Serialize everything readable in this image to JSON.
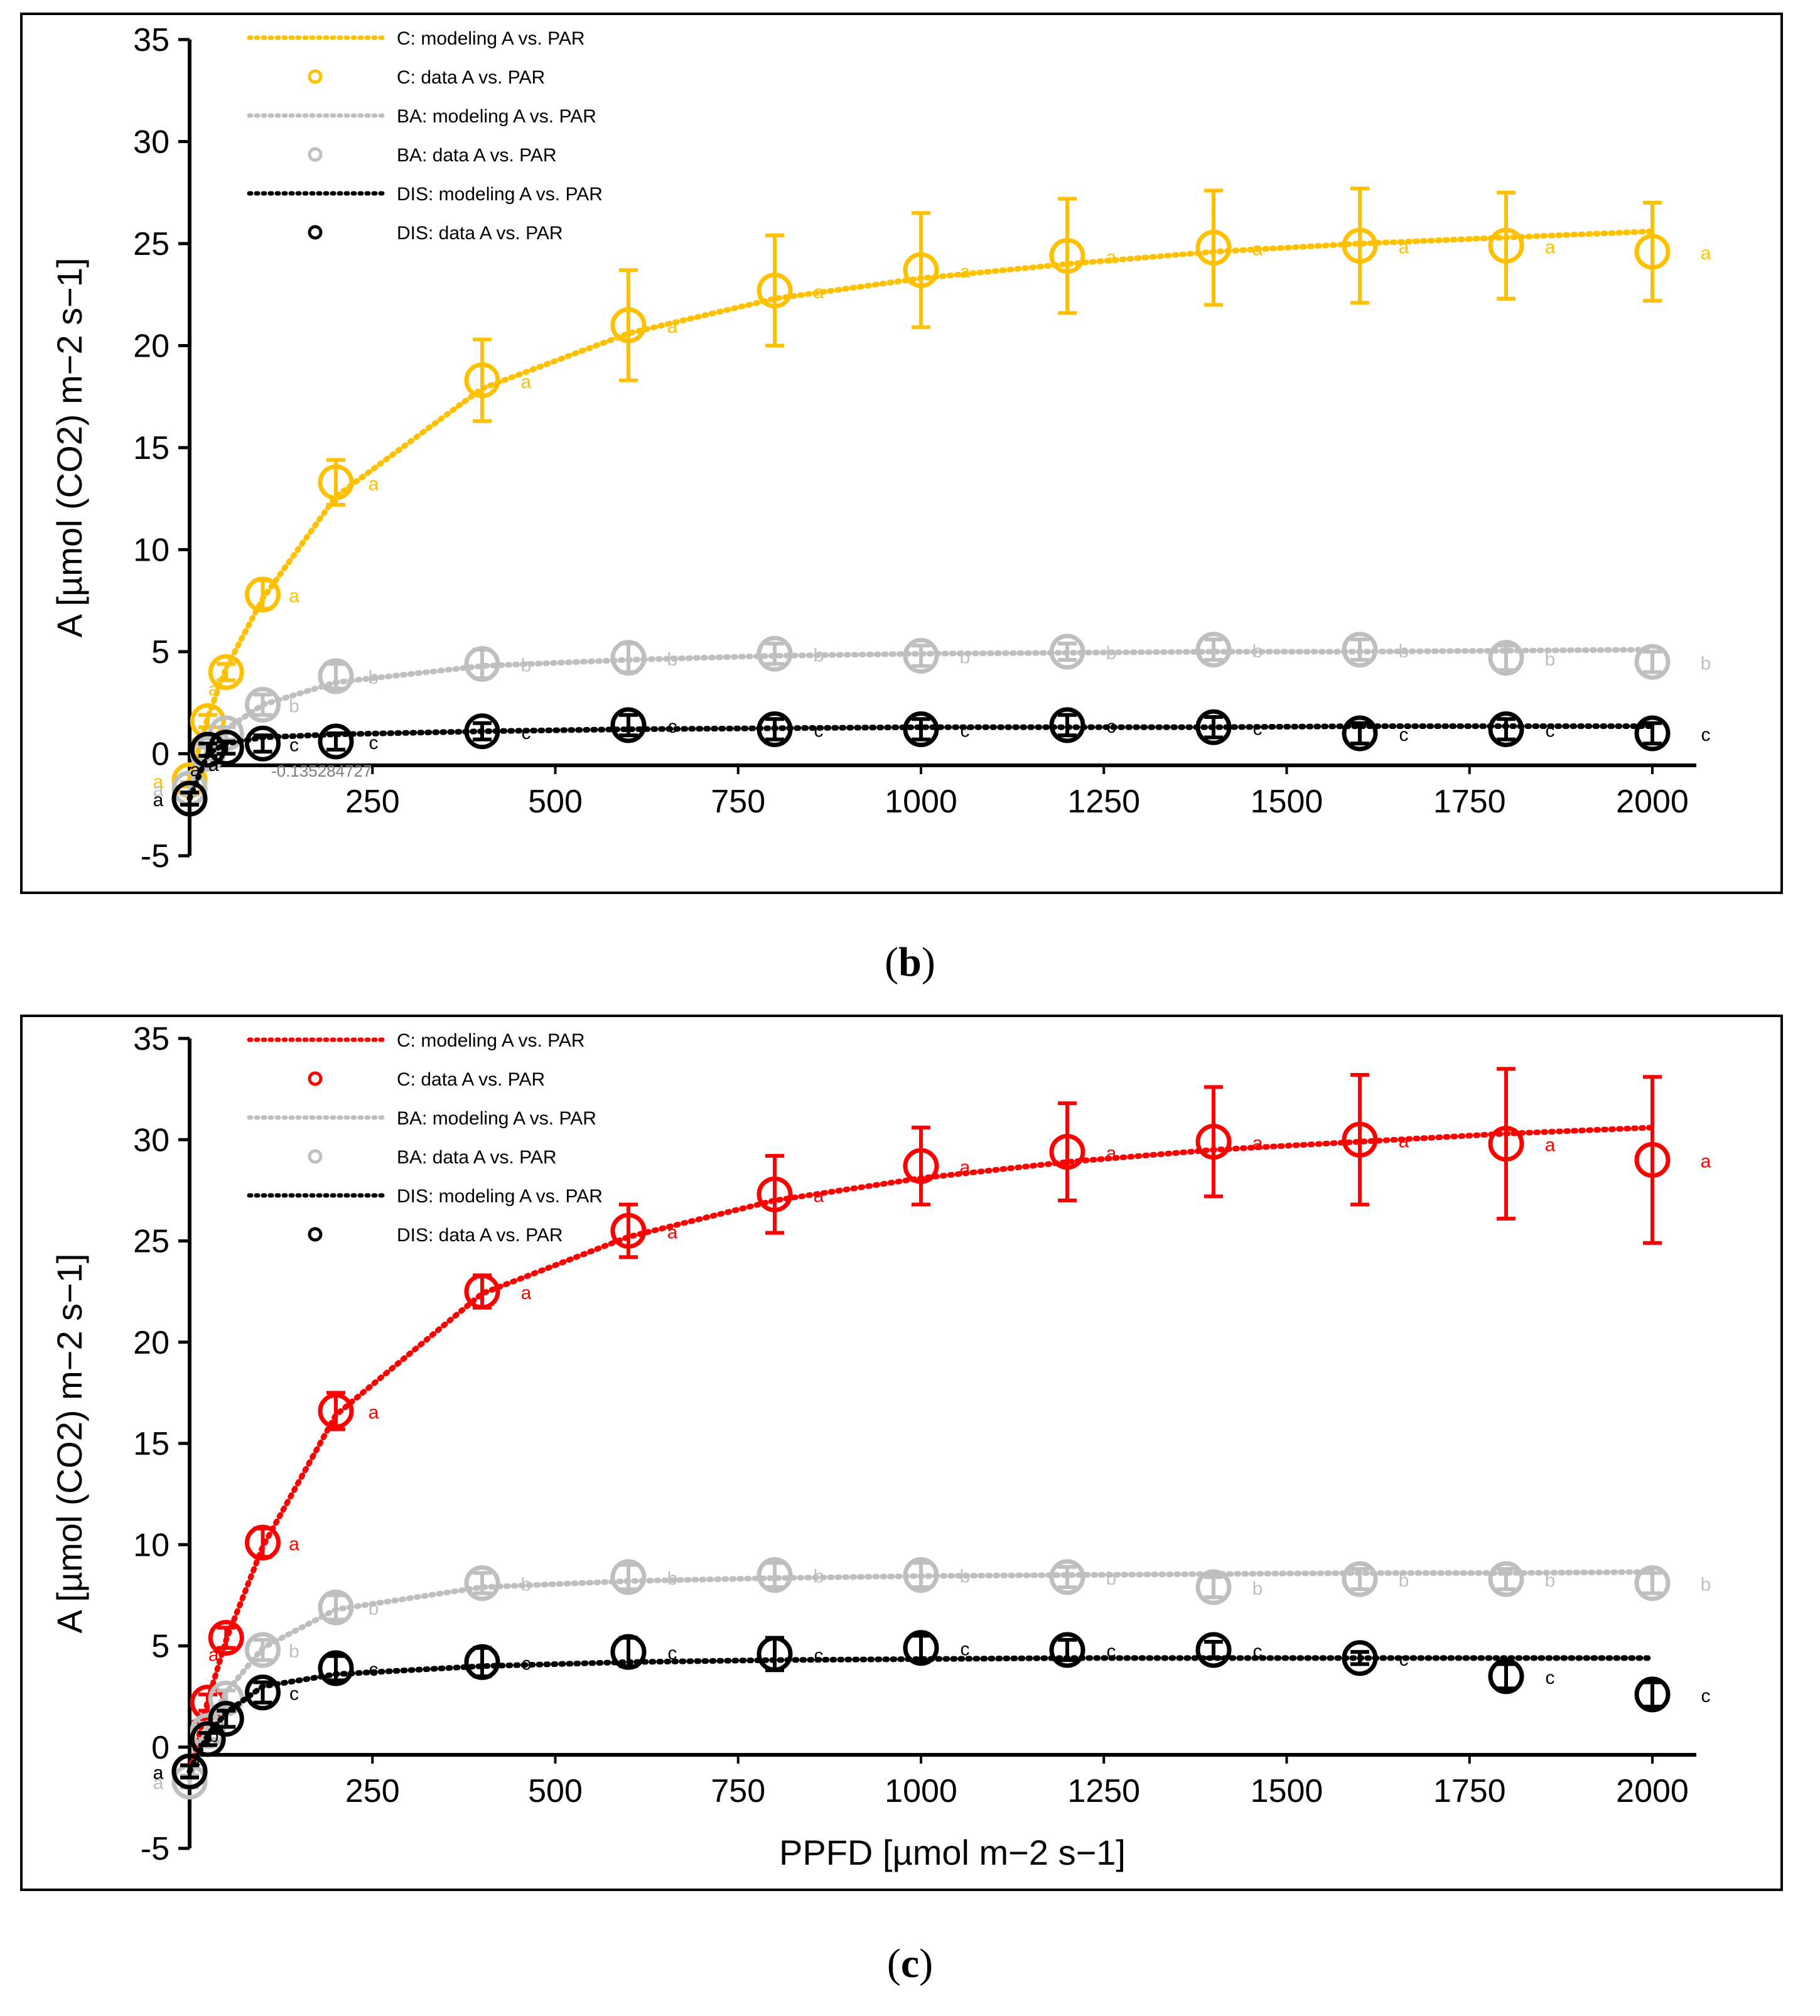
{
  "chart_data": [
    {
      "panel": "b",
      "caption_letter": "b",
      "type": "scatter",
      "xlim": [
        0,
        2000
      ],
      "ylim": [
        -5,
        35
      ],
      "x_ticks": [
        250,
        500,
        750,
        1000,
        1250,
        1500,
        1750,
        2000
      ],
      "y_ticks": [
        -5,
        0,
        5,
        10,
        15,
        20,
        25,
        30,
        35
      ],
      "xlabel": "",
      "ylabel": "A [µmol (CO2) m−2 s−1]",
      "legend_position": "top-left",
      "stray_label": "-0.135284727",
      "series": [
        {
          "name": "C",
          "legend_model": "C: modeling A vs. PAR",
          "legend_data": "C: data A vs. PAR",
          "color": "#FFC000",
          "x": [
            0,
            25,
            50,
            100,
            200,
            400,
            600,
            800,
            1000,
            1200,
            1400,
            1600,
            1800,
            2000
          ],
          "y": [
            -1.3,
            1.6,
            4.0,
            7.8,
            13.3,
            18.3,
            21.0,
            22.7,
            23.7,
            24.4,
            24.8,
            24.9,
            24.9,
            24.6
          ],
          "err": [
            0.3,
            0.3,
            0.4,
            0.7,
            1.1,
            2.0,
            2.7,
            2.7,
            2.8,
            2.8,
            2.8,
            2.8,
            2.6,
            2.4
          ],
          "model": [
            -1.3,
            1.8,
            4.2,
            7.6,
            12.6,
            17.9,
            20.6,
            22.3,
            23.3,
            24.0,
            24.6,
            25.0,
            25.3,
            25.6
          ],
          "letters": [
            "a",
            "a",
            "a",
            "a",
            "a",
            "a",
            "a",
            "a",
            "a",
            "a",
            "a",
            "a",
            "a",
            "a"
          ]
        },
        {
          "name": "BA",
          "legend_model": "BA: modeling A vs. PAR",
          "legend_data": "BA: data A vs. PAR",
          "color": "#BFBFBF",
          "x": [
            0,
            25,
            50,
            100,
            200,
            400,
            600,
            800,
            1000,
            1200,
            1400,
            1600,
            1800,
            2000
          ],
          "y": [
            -1.7,
            0.0,
            1.0,
            2.4,
            3.8,
            4.4,
            4.7,
            4.9,
            4.8,
            5.0,
            5.1,
            5.1,
            4.7,
            4.5
          ],
          "err": [
            0.3,
            0.3,
            0.3,
            0.5,
            0.6,
            0.7,
            0.7,
            0.5,
            0.5,
            0.4,
            0.5,
            0.5,
            0.6,
            0.5
          ],
          "model": [
            -1.6,
            0.2,
            1.2,
            2.4,
            3.5,
            4.3,
            4.6,
            4.8,
            4.9,
            4.95,
            5.0,
            5.0,
            5.05,
            5.1
          ],
          "letters": [
            "a",
            "a",
            "a",
            "b",
            "b",
            "b",
            "b",
            "b",
            "b",
            "b",
            "b",
            "b",
            "b",
            "b"
          ]
        },
        {
          "name": "DIS",
          "legend_model": "DIS: modeling A vs. PAR",
          "legend_data": "DIS: data A vs. PAR",
          "color": "#000000",
          "x": [
            0,
            25,
            50,
            100,
            200,
            400,
            600,
            800,
            1000,
            1200,
            1400,
            1600,
            1800,
            2000
          ],
          "y": [
            -2.2,
            0.2,
            0.3,
            0.5,
            0.6,
            1.1,
            1.4,
            1.2,
            1.2,
            1.4,
            1.3,
            1.0,
            1.2,
            1.0
          ],
          "err": [
            0.3,
            0.3,
            0.3,
            0.4,
            0.4,
            0.4,
            0.5,
            0.5,
            0.5,
            0.5,
            0.5,
            0.5,
            0.5,
            0.5
          ],
          "model": [
            -2.2,
            0.0,
            0.5,
            0.8,
            0.95,
            1.1,
            1.2,
            1.25,
            1.3,
            1.3,
            1.3,
            1.35,
            1.35,
            1.35
          ],
          "letters": [
            "a",
            "a",
            "a",
            "c",
            "c",
            "c",
            "c",
            "c",
            "c",
            "c",
            "c",
            "c",
            "c",
            "c"
          ]
        }
      ]
    },
    {
      "panel": "c",
      "caption_letter": "c",
      "type": "scatter",
      "xlim": [
        0,
        2000
      ],
      "ylim": [
        -5,
        35
      ],
      "x_ticks": [
        250,
        500,
        750,
        1000,
        1250,
        1500,
        1750,
        2000
      ],
      "y_ticks": [
        -5,
        0,
        5,
        10,
        15,
        20,
        25,
        30,
        35
      ],
      "xlabel": "PPFD [µmol m−2 s−1]",
      "ylabel": "A [µmol (CO2) m−2 s−1]",
      "legend_position": "top-left",
      "series": [
        {
          "name": "C",
          "legend_model": "C: modeling A vs. PAR",
          "legend_data": "C: data A vs. PAR",
          "color": "#FF0000",
          "x": [
            0,
            25,
            50,
            100,
            200,
            400,
            600,
            800,
            1000,
            1200,
            1400,
            1600,
            1800,
            2000
          ],
          "y": [
            -1.2,
            2.2,
            5.4,
            10.1,
            16.6,
            22.5,
            25.5,
            27.3,
            28.7,
            29.4,
            29.9,
            30.0,
            29.8,
            29.0
          ],
          "err": [
            0.3,
            0.4,
            0.5,
            0.7,
            0.9,
            0.8,
            1.3,
            1.9,
            1.9,
            2.4,
            2.7,
            3.2,
            3.7,
            4.1
          ],
          "model": [
            -1.2,
            2.3,
            5.3,
            9.9,
            16.4,
            22.4,
            25.2,
            27.0,
            28.1,
            28.9,
            29.5,
            29.9,
            30.3,
            30.6
          ],
          "letters": [
            "a",
            "a",
            "a",
            "a",
            "a",
            "a",
            "a",
            "a",
            "a",
            "a",
            "a",
            "a",
            "a",
            "a"
          ]
        },
        {
          "name": "BA",
          "legend_model": "BA: modeling A vs. PAR",
          "legend_data": "BA: data A vs. PAR",
          "color": "#BFBFBF",
          "x": [
            0,
            25,
            50,
            100,
            200,
            400,
            600,
            800,
            1000,
            1200,
            1400,
            1600,
            1800,
            2000
          ],
          "y": [
            -1.7,
            0.8,
            2.4,
            4.8,
            6.9,
            8.1,
            8.4,
            8.5,
            8.5,
            8.4,
            7.9,
            8.3,
            8.3,
            8.1
          ],
          "err": [
            0.3,
            0.4,
            0.4,
            0.5,
            0.6,
            0.5,
            0.6,
            0.6,
            0.6,
            0.5,
            0.5,
            0.5,
            0.5,
            0.5
          ],
          "model": [
            -1.6,
            1.0,
            2.7,
            4.9,
            6.8,
            7.9,
            8.2,
            8.35,
            8.45,
            8.5,
            8.55,
            8.6,
            8.6,
            8.65
          ],
          "letters": [
            "a",
            "a",
            "b",
            "b",
            "b",
            "b",
            "b",
            "b",
            "b",
            "b",
            "b",
            "b",
            "b",
            "b"
          ]
        },
        {
          "name": "DIS",
          "legend_model": "DIS: modeling A vs. PAR",
          "legend_data": "DIS: data A vs. PAR",
          "color": "#000000",
          "x": [
            0,
            25,
            50,
            100,
            200,
            400,
            600,
            800,
            1000,
            1200,
            1400,
            1600,
            1800,
            2000
          ],
          "y": [
            -1.2,
            0.4,
            1.4,
            2.7,
            3.9,
            4.2,
            4.7,
            4.6,
            4.9,
            4.8,
            4.8,
            4.4,
            3.5,
            2.6
          ],
          "err": [
            0.3,
            0.3,
            0.4,
            0.5,
            0.6,
            0.7,
            0.7,
            0.8,
            0.6,
            0.5,
            0.4,
            0.3,
            0.6,
            0.6
          ],
          "model": [
            -1.2,
            0.6,
            1.7,
            3.0,
            3.6,
            4.0,
            4.2,
            4.3,
            4.35,
            4.4,
            4.4,
            4.4,
            4.4,
            4.4
          ],
          "letters": [
            "a",
            "a",
            "b",
            "c",
            "c",
            "c",
            "c",
            "c",
            "c",
            "c",
            "c",
            "c",
            "c",
            "c"
          ]
        }
      ]
    }
  ]
}
